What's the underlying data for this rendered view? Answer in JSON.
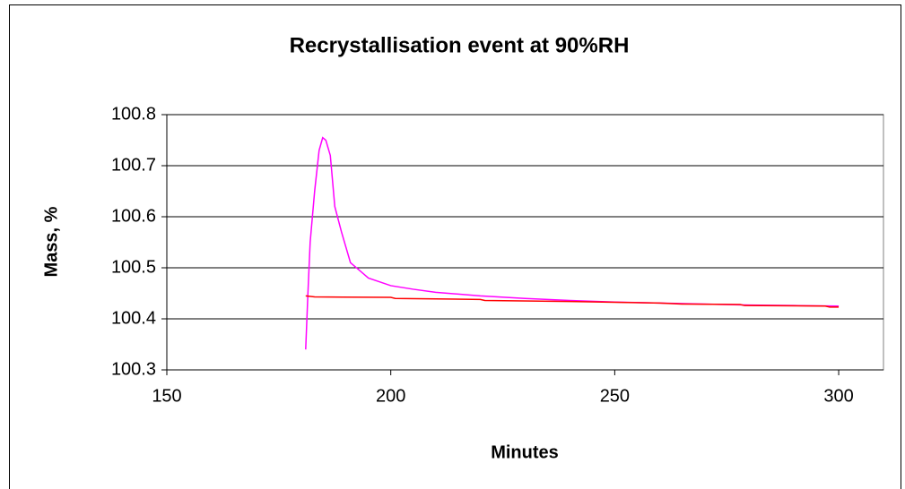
{
  "chart_data": {
    "type": "line",
    "title": "Recrystallisation event at 90%RH",
    "x_label": "Minutes",
    "y_label": "Mass, %",
    "xlim": [
      150,
      310
    ],
    "xticks": [
      150,
      200,
      250,
      300
    ],
    "ylim": [
      100.3,
      100.8
    ],
    "yticks": [
      100.3,
      100.4,
      100.5,
      100.6,
      100.7,
      100.8
    ],
    "grid": true,
    "series": [
      {
        "color": "#ff00ff",
        "x": [
          181,
          181.5,
          182,
          183,
          184,
          184.8,
          185.5,
          186.5,
          187.5,
          189,
          190,
          191,
          193,
          195,
          200,
          205,
          210,
          220,
          230,
          240,
          250,
          260,
          270,
          280,
          290,
          300
        ],
        "values": [
          100.34,
          100.45,
          100.55,
          100.65,
          100.73,
          100.755,
          100.75,
          100.72,
          100.62,
          100.57,
          100.54,
          100.51,
          100.495,
          100.48,
          100.465,
          100.458,
          100.452,
          100.445,
          100.44,
          100.436,
          100.433,
          100.431,
          100.429,
          100.427,
          100.426,
          100.425
        ]
      },
      {
        "color": "#ff0000",
        "x": [
          181,
          183,
          200,
          201,
          220,
          221,
          240,
          260,
          265,
          278,
          279,
          297,
          298,
          300
        ],
        "values": [
          100.445,
          100.443,
          100.442,
          100.44,
          100.438,
          100.436,
          100.434,
          100.431,
          100.429,
          100.428,
          100.426,
          100.425,
          100.423,
          100.423
        ]
      }
    ]
  }
}
